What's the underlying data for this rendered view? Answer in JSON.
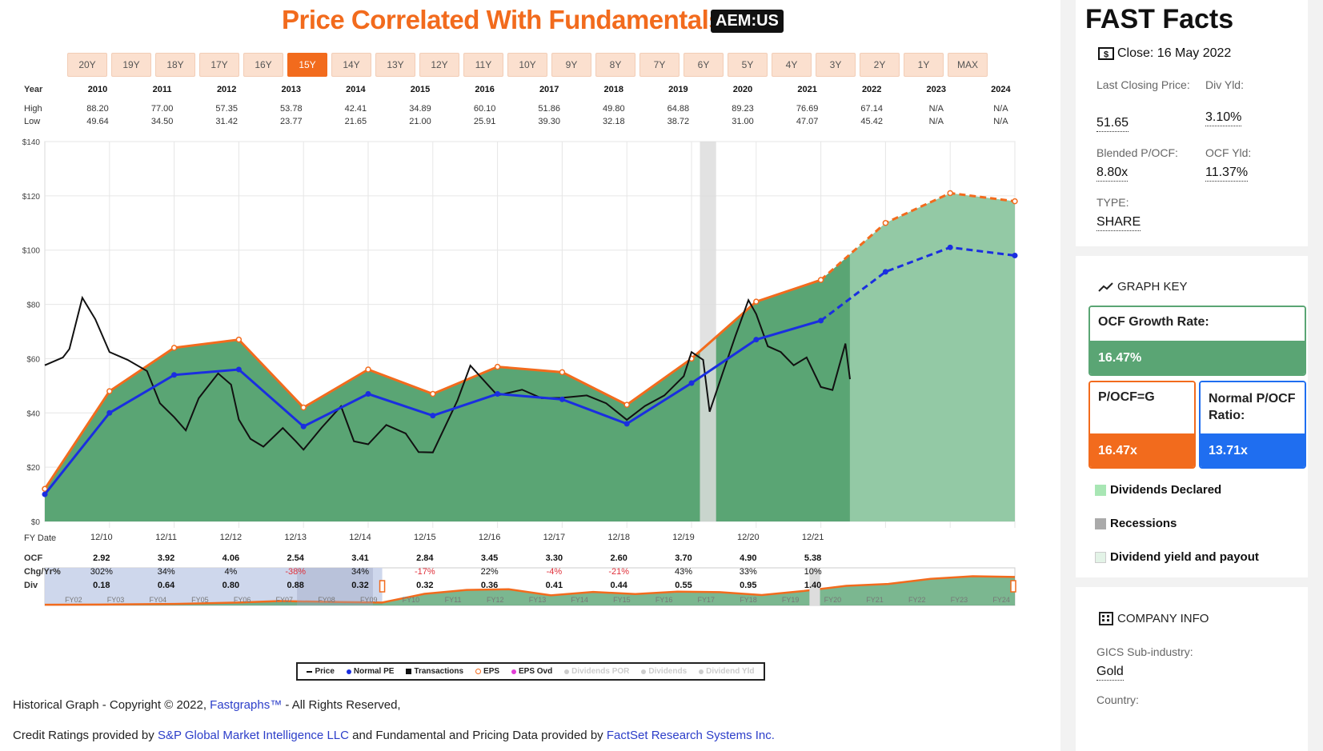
{
  "header": {
    "title": "Price Correlated With Fundamentals",
    "ticker": "AEM:US"
  },
  "periods": [
    "20Y",
    "19Y",
    "18Y",
    "17Y",
    "16Y",
    "15Y",
    "14Y",
    "13Y",
    "12Y",
    "11Y",
    "10Y",
    "9Y",
    "8Y",
    "7Y",
    "6Y",
    "5Y",
    "4Y",
    "3Y",
    "2Y",
    "1Y",
    "MAX"
  ],
  "active_period": "15Y",
  "year_table": {
    "labels": {
      "year": "Year",
      "high": "High",
      "low": "Low"
    },
    "years": [
      "2010",
      "2011",
      "2012",
      "2013",
      "2014",
      "2015",
      "2016",
      "2017",
      "2018",
      "2019",
      "2020",
      "2021",
      "2022",
      "2023",
      "2024"
    ],
    "high": [
      "88.20",
      "77.00",
      "57.35",
      "53.78",
      "42.41",
      "34.89",
      "60.10",
      "51.86",
      "49.80",
      "64.88",
      "89.23",
      "76.69",
      "67.14",
      "N/A",
      "N/A"
    ],
    "low": [
      "49.64",
      "34.50",
      "31.42",
      "23.77",
      "21.65",
      "21.00",
      "25.91",
      "39.30",
      "32.18",
      "38.72",
      "31.00",
      "47.07",
      "45.42",
      "N/A",
      "N/A"
    ]
  },
  "chart_data": {
    "type": "area",
    "y_ticks": [
      "$0",
      "$20",
      "$40",
      "$60",
      "$80",
      "$100",
      "$120",
      "$140"
    ],
    "ylim": [
      0,
      140
    ],
    "x_ticks": [
      "12/10",
      "12/11",
      "12/12",
      "12/13",
      "12/14",
      "12/15",
      "12/16",
      "12/17",
      "12/18",
      "12/19",
      "12/20",
      "12/21"
    ],
    "xlabel": "FY Date",
    "eps_series": {
      "name": "EPS",
      "x": [
        2009.92,
        2010.92,
        2011.92,
        2012.92,
        2013.92,
        2014.92,
        2015.92,
        2016.92,
        2017.92,
        2018.92,
        2019.92,
        2020.92,
        2021.92,
        2022.92,
        2023.92,
        2024.92
      ],
      "values": [
        12,
        48,
        64,
        67,
        42,
        56,
        47,
        57,
        55,
        43,
        60,
        81,
        89,
        110,
        121,
        118
      ],
      "estimated_from": 2021.92
    },
    "normal_pe_series": {
      "name": "Normal PE",
      "x": [
        2009.92,
        2010.92,
        2011.92,
        2012.92,
        2013.92,
        2014.92,
        2015.92,
        2016.92,
        2017.92,
        2018.92,
        2019.92,
        2020.92,
        2021.92,
        2022.92,
        2023.92,
        2024.92
      ],
      "values": [
        10,
        40,
        54,
        56,
        35,
        47,
        39,
        47,
        45,
        36,
        51,
        67,
        74,
        92,
        101,
        98
      ],
      "estimated_from": 2021.92
    },
    "price_series": {
      "name": "Price",
      "x": [
        2009.92,
        2010.2,
        2010.3,
        2010.5,
        2010.7,
        2010.92,
        2011.2,
        2011.5,
        2011.7,
        2011.92,
        2012.1,
        2012.3,
        2012.6,
        2012.8,
        2012.92,
        2013.1,
        2013.3,
        2013.6,
        2013.8,
        2013.92,
        2014.2,
        2014.5,
        2014.7,
        2014.92,
        2015.2,
        2015.5,
        2015.7,
        2015.92,
        2016.3,
        2016.5,
        2016.8,
        2016.92,
        2017.3,
        2017.6,
        2017.92,
        2018.3,
        2018.6,
        2018.92,
        2019.2,
        2019.5,
        2019.8,
        2019.92,
        2020.1,
        2020.2,
        2020.4,
        2020.6,
        2020.8,
        2020.92,
        2021.1,
        2021.3,
        2021.5,
        2021.7,
        2021.92,
        2022.1,
        2022.3,
        2022.37
      ],
      "values": [
        58,
        60,
        64,
        82,
        75,
        62,
        60,
        55,
        44,
        38,
        34,
        45,
        55,
        50,
        38,
        30,
        28,
        34,
        30,
        26,
        35,
        42,
        30,
        28,
        36,
        32,
        26,
        25,
        45,
        57,
        50,
        46,
        49,
        45,
        46,
        46,
        44,
        37,
        43,
        46,
        54,
        62,
        60,
        40,
        55,
        68,
        82,
        76,
        65,
        62,
        58,
        60,
        50,
        48,
        66,
        52
      ]
    },
    "recession": {
      "x_start": 2020.05,
      "x_end": 2020.3
    },
    "estimate_start": 2022.37,
    "colors": {
      "area": "#5aa574",
      "area_est": "#93c9a5",
      "eps": "#f26b1d",
      "normal_pe": "#1a2ee0",
      "price": "#111111",
      "recession": "#dddddd"
    }
  },
  "fundamentals": {
    "labels": {
      "ocf": "OCF",
      "chg": "Chg/Yr%",
      "div": "Div"
    },
    "ocf": [
      "2.92",
      "3.92",
      "4.06",
      "2.54",
      "3.41",
      "2.84",
      "3.45",
      "3.30",
      "2.60",
      "3.70",
      "4.90",
      "5.38"
    ],
    "chg": [
      "302%",
      "34%",
      "4%",
      "-38%",
      "34%",
      "-17%",
      "22%",
      "-4%",
      "-21%",
      "43%",
      "33%",
      "10%"
    ],
    "div": [
      "0.18",
      "0.64",
      "0.80",
      "0.88",
      "0.32",
      "0.32",
      "0.36",
      "0.41",
      "0.44",
      "0.55",
      "0.95",
      "1.40"
    ]
  },
  "navigator": {
    "labels": [
      "FY02",
      "FY03",
      "FY04",
      "FY05",
      "FY06",
      "FY07",
      "FY08",
      "FY09",
      "FY10",
      "FY11",
      "FY12",
      "FY13",
      "FY14",
      "FY15",
      "FY16",
      "FY17",
      "FY18",
      "FY19",
      "FY20",
      "FY21",
      "FY22",
      "FY23",
      "FY24"
    ]
  },
  "legend": [
    {
      "label": "Price",
      "marker": "dash",
      "color": "#111111",
      "enabled": true
    },
    {
      "label": "Normal PE",
      "marker": "dot",
      "color": "#1a2ee0",
      "enabled": true
    },
    {
      "label": "Transactions",
      "marker": "square",
      "color": "#111111",
      "enabled": true
    },
    {
      "label": "EPS",
      "marker": "ring",
      "color": "#f26b1d",
      "enabled": true
    },
    {
      "label": "EPS Ovd",
      "marker": "dot",
      "color": "#e23dd6",
      "enabled": true
    },
    {
      "label": "Dividends POR",
      "marker": "dot",
      "color": "#cccccc",
      "enabled": false
    },
    {
      "label": "Dividends",
      "marker": "dot",
      "color": "#cccccc",
      "enabled": false
    },
    {
      "label": "Dividend Yld",
      "marker": "dot",
      "color": "#cccccc",
      "enabled": false
    }
  ],
  "footer": {
    "copyright_pre": "Historical Graph - Copyright © 2022, ",
    "fastgraphs": "Fastgraphs™",
    "copyright_post": " - All Rights Reserved,",
    "credit_pre": "Credit Ratings provided by ",
    "sp": "S&P Global Market Intelligence LLC",
    "credit_mid": " and Fundamental and Pricing Data provided by ",
    "factset": "FactSet Research Systems Inc."
  },
  "fast_facts": {
    "title": "FAST Facts",
    "close": "Close: 16 May 2022",
    "last_closing_label": "Last Closing Price:",
    "last_closing_value": "51.65",
    "div_yld_label": "Div Yld:",
    "div_yld_value": "3.10%",
    "blended_label": "Blended P/OCF:",
    "blended_value": "8.80x",
    "ocf_yld_label": "OCF Yld:",
    "ocf_yld_value": "11.37%",
    "type_label": "TYPE:",
    "type_value": "SHARE"
  },
  "graph_key": {
    "title": "GRAPH KEY",
    "growth_label": "OCF Growth Rate:",
    "growth_value": "16.47%",
    "pocf_label": "P/OCF=G",
    "pocf_value": "16.47x",
    "normal_label": "Normal P/OCF Ratio:",
    "normal_value": "13.71x",
    "items": [
      "Dividends Declared",
      "Recessions",
      "Dividend yield and payout"
    ],
    "colors": {
      "growth": "#5aa574",
      "pocf": "#f26b1d",
      "normal": "#1f6ef0"
    }
  },
  "company_info": {
    "title": "COMPANY INFO",
    "gics_label": "GICS Sub-industry:",
    "gics_value": "Gold",
    "country_label": "Country:"
  }
}
